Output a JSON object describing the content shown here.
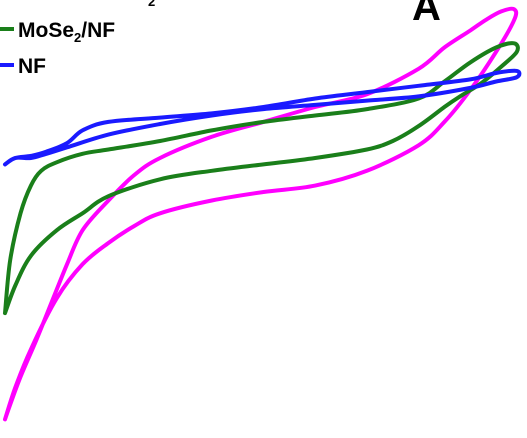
{
  "chart_data": {
    "type": "line",
    "title": "",
    "xlabel": "",
    "ylabel": "",
    "panel_label": "A",
    "xlim": [
      0,
      1
    ],
    "ylim": [
      -1,
      1
    ],
    "grid": false,
    "legend_placement": "top-left",
    "legend": {
      "partial_entry_subscript": "2",
      "entries": [
        {
          "series": 1,
          "prefix": "MoSe",
          "subscript": "2",
          "suffix": "/NF"
        },
        {
          "series": 2,
          "prefix": "NF",
          "subscript": "",
          "suffix": ""
        }
      ]
    },
    "series": [
      {
        "color": "#ff00ff",
        "x": [
          0.0,
          0.02,
          0.05,
          0.1,
          0.15,
          0.2,
          0.25,
          0.3,
          0.4,
          0.5,
          0.6,
          0.7,
          0.8,
          0.85,
          0.9,
          0.95,
          0.985,
          0.985,
          0.96,
          0.93,
          0.9,
          0.85,
          0.8,
          0.7,
          0.6,
          0.5,
          0.4,
          0.3,
          0.25,
          0.2,
          0.15,
          0.12,
          0.09,
          0.06,
          0.03,
          0.01,
          0.0
        ],
        "y": [
          -0.95,
          -0.8,
          -0.62,
          -0.38,
          -0.22,
          -0.12,
          -0.04,
          0.02,
          0.08,
          0.12,
          0.15,
          0.22,
          0.34,
          0.45,
          0.6,
          0.78,
          0.93,
          0.98,
          0.97,
          0.93,
          0.88,
          0.8,
          0.7,
          0.58,
          0.52,
          0.45,
          0.38,
          0.28,
          0.2,
          0.08,
          -0.06,
          -0.22,
          -0.4,
          -0.58,
          -0.75,
          -0.88,
          -0.95
        ]
      },
      {
        "color": "#1a7f1a",
        "x": [
          0.0,
          0.02,
          0.05,
          0.1,
          0.15,
          0.2,
          0.3,
          0.4,
          0.5,
          0.6,
          0.7,
          0.75,
          0.8,
          0.85,
          0.88,
          0.92,
          0.96,
          0.99,
          0.985,
          0.95,
          0.9,
          0.85,
          0.8,
          0.7,
          0.6,
          0.5,
          0.4,
          0.3,
          0.2,
          0.15,
          0.1,
          0.07,
          0.05,
          0.03,
          0.01,
          0.0
        ],
        "y": [
          -0.45,
          -0.32,
          -0.18,
          -0.06,
          0.02,
          0.1,
          0.18,
          0.22,
          0.25,
          0.28,
          0.32,
          0.36,
          0.43,
          0.52,
          0.57,
          0.63,
          0.71,
          0.78,
          0.82,
          0.8,
          0.73,
          0.64,
          0.56,
          0.51,
          0.48,
          0.45,
          0.41,
          0.36,
          0.32,
          0.3,
          0.26,
          0.22,
          0.15,
          0.02,
          -0.2,
          -0.45
        ]
      },
      {
        "color": "#1a1aff",
        "x": [
          0.0,
          0.02,
          0.05,
          0.08,
          0.12,
          0.2,
          0.3,
          0.4,
          0.5,
          0.6,
          0.7,
          0.8,
          0.9,
          0.95,
          0.99,
          0.99,
          0.95,
          0.9,
          0.8,
          0.7,
          0.6,
          0.5,
          0.4,
          0.3,
          0.2,
          0.15,
          0.12,
          0.08,
          0.05,
          0.02,
          0.0
        ],
        "y": [
          0.25,
          0.28,
          0.28,
          0.3,
          0.33,
          0.39,
          0.44,
          0.48,
          0.51,
          0.53,
          0.55,
          0.57,
          0.61,
          0.64,
          0.66,
          0.69,
          0.68,
          0.65,
          0.62,
          0.59,
          0.56,
          0.52,
          0.49,
          0.47,
          0.45,
          0.41,
          0.35,
          0.31,
          0.29,
          0.28,
          0.25
        ]
      }
    ]
  }
}
